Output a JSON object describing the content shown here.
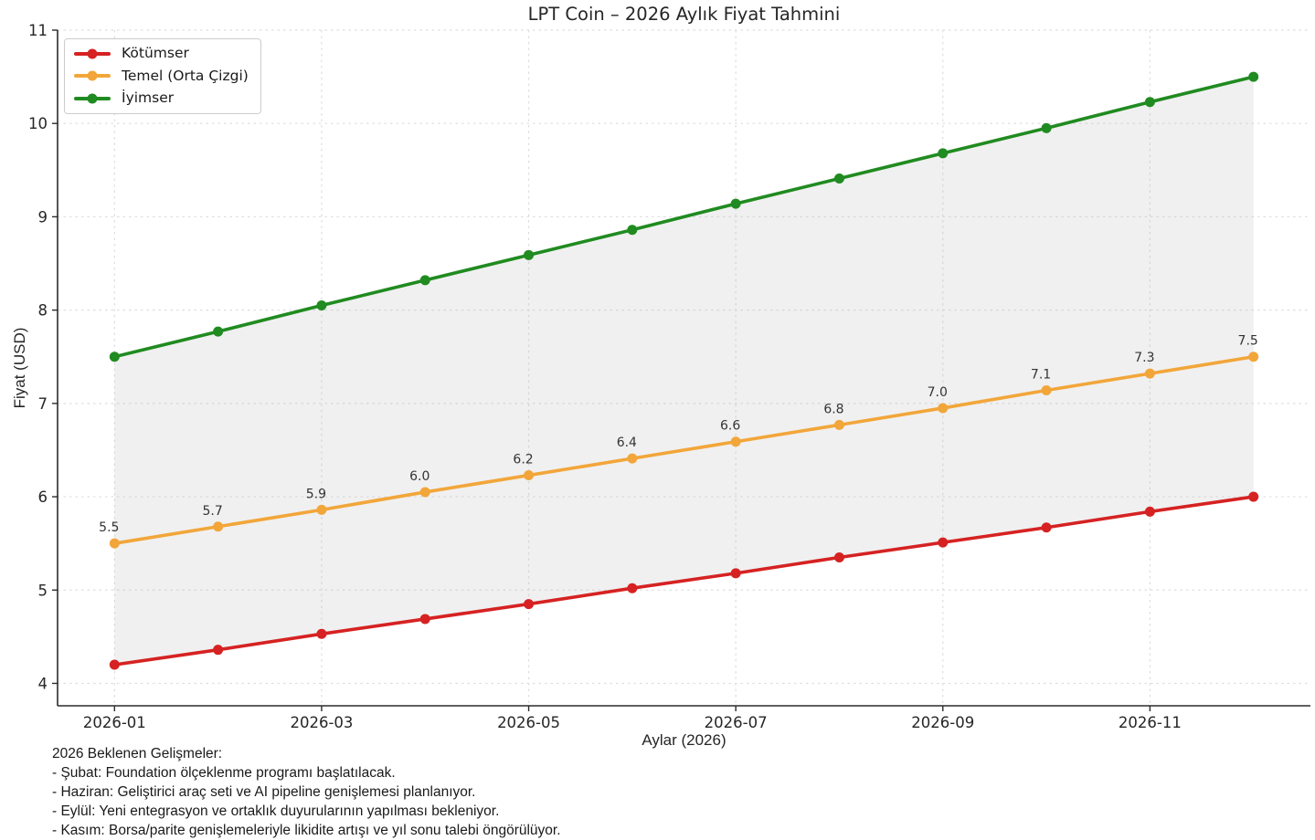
{
  "chart_data": {
    "type": "line",
    "title": "LPT Coin – 2026 Aylık Fiyat Tahmini",
    "xlabel": "Aylar (2026)",
    "ylabel": "Fiyat (USD)",
    "xlim": [
      0.45,
      12.55
    ],
    "ylim": [
      3.76,
      11
    ],
    "y_ticks": [
      4,
      5,
      6,
      7,
      8,
      9,
      10,
      11
    ],
    "x_ticks": [
      {
        "month": 1,
        "label": "2026-01"
      },
      {
        "month": 3,
        "label": "2026-03"
      },
      {
        "month": 5,
        "label": "2026-05"
      },
      {
        "month": 7,
        "label": "2026-07"
      },
      {
        "month": 9,
        "label": "2026-09"
      },
      {
        "month": 11,
        "label": "2026-11"
      }
    ],
    "months": [
      1,
      2,
      3,
      4,
      5,
      6,
      7,
      8,
      9,
      10,
      11,
      12
    ],
    "grid": {
      "visible": true,
      "style": "dashed",
      "color": "#dedede"
    },
    "legend_position": "upper left",
    "band": {
      "between": [
        "Kötümser",
        "İyimser"
      ],
      "fill_color": "#bbbbbb",
      "fill_opacity": 0.22
    },
    "series": [
      {
        "name": "Kötümser",
        "color": "#d62222",
        "values": [
          4.2,
          4.36,
          4.53,
          4.69,
          4.85,
          5.02,
          5.18,
          5.35,
          5.51,
          5.67,
          5.84,
          6.0
        ]
      },
      {
        "name": "Temel (Orta Çizgi)",
        "color": "#f2a63a",
        "values": [
          5.5,
          5.68,
          5.86,
          6.05,
          6.23,
          6.41,
          6.59,
          6.77,
          6.95,
          7.14,
          7.32,
          7.5
        ],
        "point_labels": [
          "5.5",
          "5.7",
          "5.9",
          "6.0",
          "6.2",
          "6.4",
          "6.6",
          "6.8",
          "7.0",
          "7.1",
          "7.3",
          "7.5"
        ]
      },
      {
        "name": "İyimser",
        "color": "#208b20",
        "values": [
          7.5,
          7.77,
          8.05,
          8.32,
          8.59,
          8.86,
          9.14,
          9.41,
          9.68,
          9.95,
          10.23,
          10.5
        ]
      }
    ],
    "style": {
      "spine_color": "#2b2b2b",
      "tick_label_color": "#262626",
      "data_label_color": "#333333"
    }
  },
  "notes": {
    "lines": [
      "2026 Beklenen Gelişmeler:",
      "- Şubat: Foundation ölçeklenme programı başlatılacak.",
      "- Haziran: Geliştirici araç seti ve AI pipeline genişlemesi planlanıyor.",
      "- Eylül: Yeni entegrasyon ve ortaklık duyurularının yapılması bekleniyor.",
      "- Kasım: Borsa/parite genişlemeleriyle likidite artışı ve yıl sonu talebi öngörülüyor."
    ]
  }
}
